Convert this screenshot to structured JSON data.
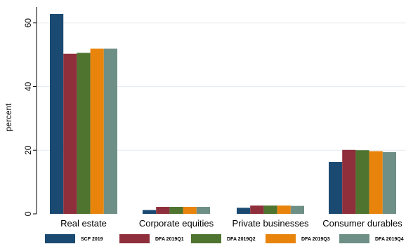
{
  "chart_data": {
    "type": "bar",
    "ylabel": "percent",
    "xlabel": "",
    "ylim": [
      0,
      65
    ],
    "yticks": [
      0,
      20,
      40,
      60
    ],
    "grid": true,
    "legend_position": "bottom",
    "categories": [
      "Real estate",
      "Corporate equities",
      "Private businesses",
      "Consumer durables"
    ],
    "series": [
      {
        "name": "SCF 2019",
        "color": "#1a4a72",
        "values": [
          62.8,
          1.2,
          1.9,
          16.3
        ]
      },
      {
        "name": "DFA 2019Q1",
        "color": "#8e2f3b",
        "values": [
          50.3,
          2.2,
          2.6,
          20.1
        ]
      },
      {
        "name": "DFA 2019Q2",
        "color": "#4e7430",
        "values": [
          50.6,
          2.2,
          2.6,
          20.0
        ]
      },
      {
        "name": "DFA 2019Q3",
        "color": "#e8840c",
        "values": [
          51.9,
          2.2,
          2.6,
          19.7
        ]
      },
      {
        "name": "DFA 2019Q4",
        "color": "#6e8f85",
        "values": [
          51.9,
          2.2,
          2.5,
          19.4
        ]
      }
    ]
  }
}
